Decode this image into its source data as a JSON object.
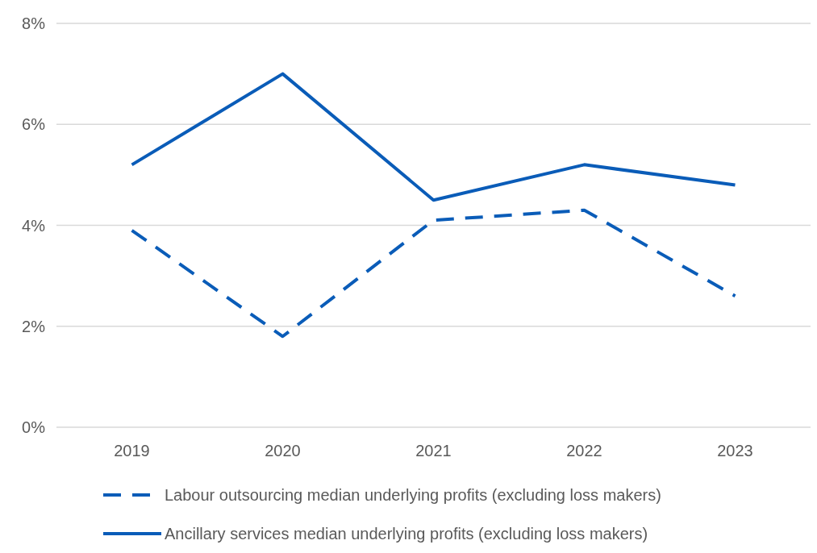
{
  "chart_data": {
    "type": "line",
    "categories": [
      "2019",
      "2020",
      "2021",
      "2022",
      "2023"
    ],
    "series": [
      {
        "name": "Labour outsourcing median underlying profits (excluding loss makers)",
        "color": "#0a5cb8",
        "line_style": "dashed",
        "values": [
          3.9,
          1.8,
          4.1,
          4.3,
          2.6
        ]
      },
      {
        "name": "Ancillary services median underlying profits (excluding loss makers)",
        "color": "#0a5cb8",
        "line_style": "solid",
        "values": [
          5.2,
          7.0,
          4.5,
          5.2,
          4.8
        ]
      }
    ],
    "ylim": [
      0,
      8
    ],
    "yticks": [
      {
        "value": 0,
        "label": "0%"
      },
      {
        "value": 2,
        "label": "2%"
      },
      {
        "value": 4,
        "label": "4%"
      },
      {
        "value": 6,
        "label": "6%"
      },
      {
        "value": 8,
        "label": "8%"
      }
    ],
    "grid": "y",
    "legend": "bottom",
    "marker": "none"
  }
}
